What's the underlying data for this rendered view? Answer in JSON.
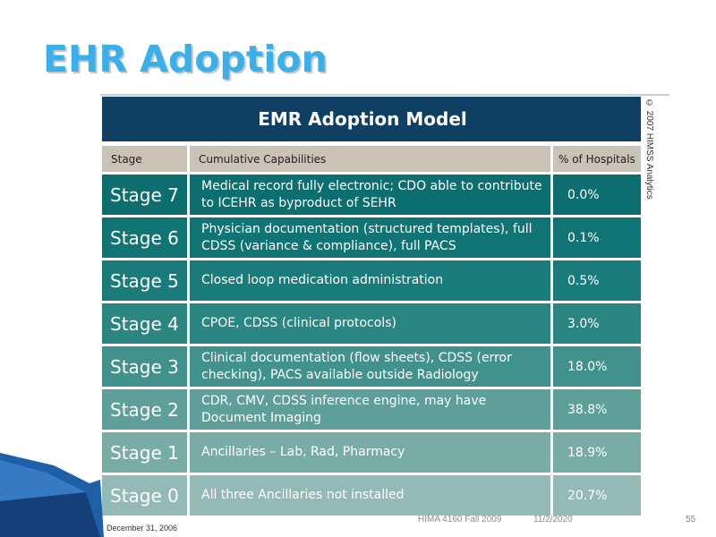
{
  "slide": {
    "title": "EHR Adoption",
    "footer_course": "HIMA 4160 Fall 2009",
    "footer_date": "11/2/2020",
    "page_number": "55"
  },
  "figure": {
    "title": "EMR Adoption Model",
    "copyright": "© 2007 HIMSS Analytics",
    "footnote": "December 31, 2006",
    "column_headers": {
      "stage": "Stage",
      "capabilities": "Cumulative Capabilities",
      "percent": "% of Hospitals"
    },
    "rows": [
      {
        "stage": "Stage 7",
        "capability": "Medical record fully electronic; CDO able to contribute to ICEHR as byproduct of SEHR",
        "percent": "0.0%",
        "color": "#0c6e6e"
      },
      {
        "stage": "Stage 6",
        "capability": "Physician documentation (structured templates), full CDSS (variance & compliance), full PACS",
        "percent": "0.1%",
        "color": "#0f7473"
      },
      {
        "stage": "Stage 5",
        "capability": "Closed loop medication administration",
        "percent": "0.5%",
        "color": "#197c7a"
      },
      {
        "stage": "Stage 4",
        "capability": "CPOE, CDSS (clinical protocols)",
        "percent": "3.0%",
        "color": "#2b8682"
      },
      {
        "stage": "Stage 3",
        "capability": "Clinical documentation (flow sheets), CDSS (error checking), PACS available outside Radiology",
        "percent": "18.0%",
        "color": "#41928d"
      },
      {
        "stage": "Stage 2",
        "capability": "CDR, CMV, CDSS inference engine, may have Document Imaging",
        "percent": "38.8%",
        "color": "#5e9f99"
      },
      {
        "stage": "Stage 1",
        "capability": "Ancillaries – Lab, Rad, Pharmacy",
        "percent": "18.9%",
        "color": "#7aaca6"
      },
      {
        "stage": "Stage 0",
        "capability": "All three Ancillaries not installed",
        "percent": "20.7%",
        "color": "#93bab4"
      }
    ]
  },
  "colors": {
    "title": "#3ab0ea",
    "header_band": "#0f3f63",
    "column_header": "#c9c3b7",
    "swoosh": "#1f5fa8"
  }
}
